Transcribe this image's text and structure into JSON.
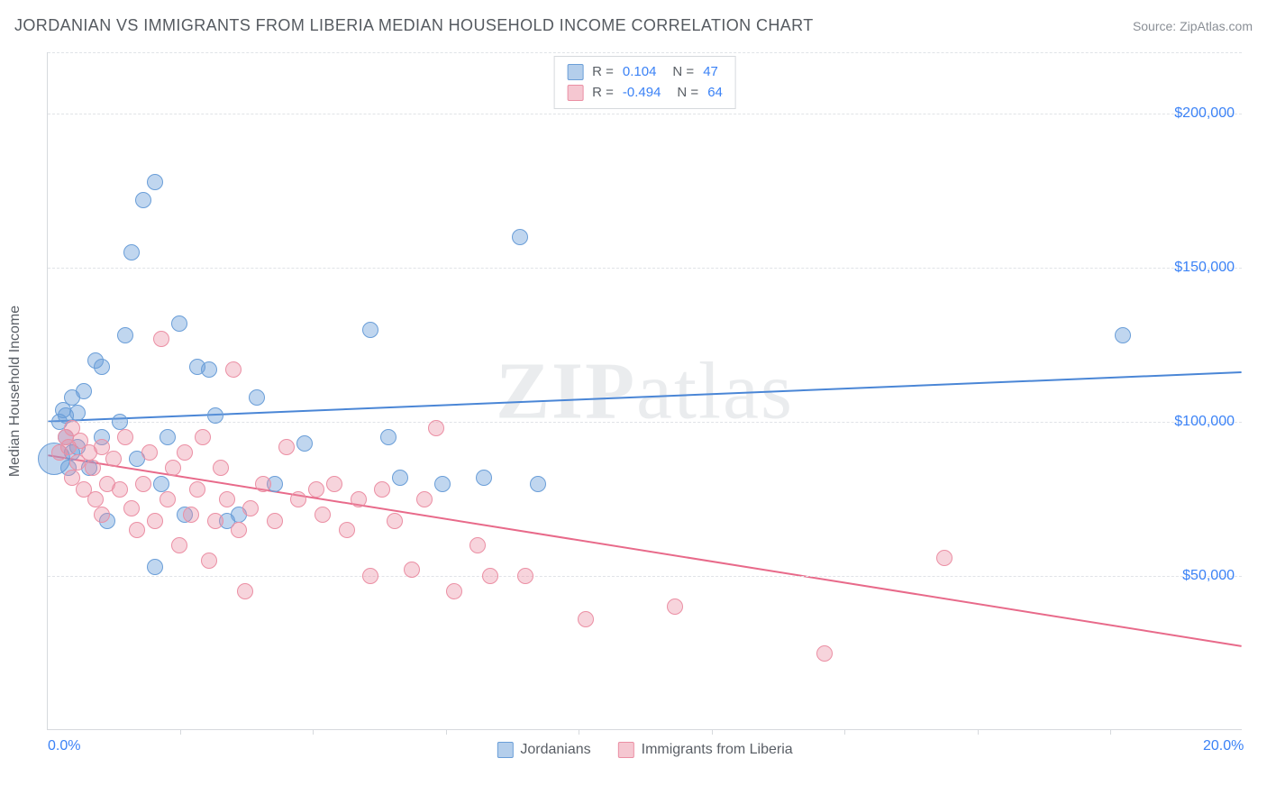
{
  "title": "JORDANIAN VS IMMIGRANTS FROM LIBERIA MEDIAN HOUSEHOLD INCOME CORRELATION CHART",
  "source_label": "Source: ZipAtlas.com",
  "chart": {
    "type": "scatter",
    "xlim": [
      0,
      20
    ],
    "ylim": [
      0,
      220000
    ],
    "x_ticks_labeled": [
      {
        "v": 0.0,
        "label": "0.0%"
      },
      {
        "v": 20.0,
        "label": "20.0%"
      }
    ],
    "x_tick_marks": [
      2.22,
      4.44,
      6.67,
      8.89,
      11.11,
      13.33,
      15.56,
      17.78
    ],
    "y_ticks": [
      {
        "v": 50000,
        "label": "$50,000"
      },
      {
        "v": 100000,
        "label": "$100,000"
      },
      {
        "v": 150000,
        "label": "$150,000"
      },
      {
        "v": 200000,
        "label": "$200,000"
      }
    ],
    "y_axis_title": "Median Household Income",
    "background_color": "#ffffff",
    "grid_color": "#e0e3e7",
    "axis_color": "#d6d9dd",
    "tick_label_color": "#3b82f6",
    "series": [
      {
        "name": "Jordanians",
        "color_fill": "rgba(106,158,216,0.42)",
        "color_stroke": "#6a9ed8",
        "marker_radius": 9,
        "R": "0.104",
        "N": "47",
        "trend": {
          "x1": 0,
          "y1": 100000,
          "x2": 20,
          "y2": 116000,
          "stroke": "#4a86d6",
          "width": 2
        },
        "points": [
          [
            0.1,
            88000,
            18
          ],
          [
            0.2,
            100000,
            9
          ],
          [
            0.25,
            104000,
            9
          ],
          [
            0.3,
            95000,
            9
          ],
          [
            0.3,
            102000,
            9
          ],
          [
            0.35,
            85000,
            9
          ],
          [
            0.4,
            90000,
            9
          ],
          [
            0.4,
            108000,
            9
          ],
          [
            0.5,
            103000,
            9
          ],
          [
            0.5,
            92000,
            9
          ],
          [
            0.6,
            110000,
            9
          ],
          [
            0.7,
            85000,
            9
          ],
          [
            0.8,
            120000,
            9
          ],
          [
            0.9,
            95000,
            9
          ],
          [
            0.9,
            118000,
            9
          ],
          [
            1.0,
            68000,
            9
          ],
          [
            1.2,
            100000,
            9
          ],
          [
            1.3,
            128000,
            9
          ],
          [
            1.4,
            155000,
            9
          ],
          [
            1.5,
            88000,
            9
          ],
          [
            1.6,
            172000,
            9
          ],
          [
            1.8,
            178000,
            9
          ],
          [
            1.8,
            53000,
            9
          ],
          [
            1.9,
            80000,
            9
          ],
          [
            2.0,
            95000,
            9
          ],
          [
            2.2,
            132000,
            9
          ],
          [
            2.3,
            70000,
            9
          ],
          [
            2.5,
            118000,
            9
          ],
          [
            2.7,
            117000,
            9
          ],
          [
            2.8,
            102000,
            9
          ],
          [
            3.0,
            68000,
            9
          ],
          [
            3.2,
            70000,
            9
          ],
          [
            3.5,
            108000,
            9
          ],
          [
            3.8,
            80000,
            9
          ],
          [
            4.3,
            93000,
            9
          ],
          [
            5.4,
            130000,
            9
          ],
          [
            5.7,
            95000,
            9
          ],
          [
            5.9,
            82000,
            9
          ],
          [
            6.6,
            80000,
            9
          ],
          [
            7.3,
            82000,
            9
          ],
          [
            7.9,
            160000,
            9
          ],
          [
            8.2,
            80000,
            9
          ],
          [
            18.0,
            128000,
            9
          ]
        ]
      },
      {
        "name": "Immigrants from Liberia",
        "color_fill": "rgba(235,143,164,0.38)",
        "color_stroke": "#eb8fa4",
        "marker_radius": 9,
        "R": "-0.494",
        "N": "64",
        "trend": {
          "x1": 0,
          "y1": 89000,
          "x2": 20,
          "y2": 27000,
          "stroke": "#e86a8a",
          "width": 2
        },
        "points": [
          [
            0.2,
            90000,
            9
          ],
          [
            0.3,
            95000,
            9
          ],
          [
            0.35,
            92000,
            9
          ],
          [
            0.4,
            98000,
            9
          ],
          [
            0.4,
            82000,
            9
          ],
          [
            0.5,
            87000,
            9
          ],
          [
            0.55,
            94000,
            9
          ],
          [
            0.6,
            78000,
            9
          ],
          [
            0.7,
            90000,
            9
          ],
          [
            0.75,
            85000,
            9
          ],
          [
            0.8,
            75000,
            9
          ],
          [
            0.9,
            92000,
            9
          ],
          [
            0.9,
            70000,
            9
          ],
          [
            1.0,
            80000,
            9
          ],
          [
            1.1,
            88000,
            9
          ],
          [
            1.2,
            78000,
            9
          ],
          [
            1.3,
            95000,
            9
          ],
          [
            1.4,
            72000,
            9
          ],
          [
            1.5,
            65000,
            9
          ],
          [
            1.6,
            80000,
            9
          ],
          [
            1.7,
            90000,
            9
          ],
          [
            1.8,
            68000,
            9
          ],
          [
            1.9,
            127000,
            9
          ],
          [
            2.0,
            75000,
            9
          ],
          [
            2.1,
            85000,
            9
          ],
          [
            2.2,
            60000,
            9
          ],
          [
            2.3,
            90000,
            9
          ],
          [
            2.4,
            70000,
            9
          ],
          [
            2.5,
            78000,
            9
          ],
          [
            2.6,
            95000,
            9
          ],
          [
            2.7,
            55000,
            9
          ],
          [
            2.8,
            68000,
            9
          ],
          [
            2.9,
            85000,
            9
          ],
          [
            3.0,
            75000,
            9
          ],
          [
            3.1,
            117000,
            9
          ],
          [
            3.2,
            65000,
            9
          ],
          [
            3.3,
            45000,
            9
          ],
          [
            3.4,
            72000,
            9
          ],
          [
            3.6,
            80000,
            9
          ],
          [
            3.8,
            68000,
            9
          ],
          [
            4.0,
            92000,
            9
          ],
          [
            4.2,
            75000,
            9
          ],
          [
            4.5,
            78000,
            9
          ],
          [
            4.6,
            70000,
            9
          ],
          [
            4.8,
            80000,
            9
          ],
          [
            5.0,
            65000,
            9
          ],
          [
            5.2,
            75000,
            9
          ],
          [
            5.4,
            50000,
            9
          ],
          [
            5.6,
            78000,
            9
          ],
          [
            5.8,
            68000,
            9
          ],
          [
            6.1,
            52000,
            9
          ],
          [
            6.3,
            75000,
            9
          ],
          [
            6.5,
            98000,
            9
          ],
          [
            6.8,
            45000,
            9
          ],
          [
            7.2,
            60000,
            9
          ],
          [
            7.4,
            50000,
            9
          ],
          [
            8.0,
            50000,
            9
          ],
          [
            9.0,
            36000,
            9
          ],
          [
            10.5,
            40000,
            9
          ],
          [
            13.0,
            25000,
            9
          ],
          [
            15.0,
            56000,
            9
          ]
        ]
      }
    ],
    "bottom_legend": [
      "Jordanians",
      "Immigrants from Liberia"
    ],
    "watermark": {
      "bold": "ZIP",
      "rest": "atlas"
    }
  }
}
